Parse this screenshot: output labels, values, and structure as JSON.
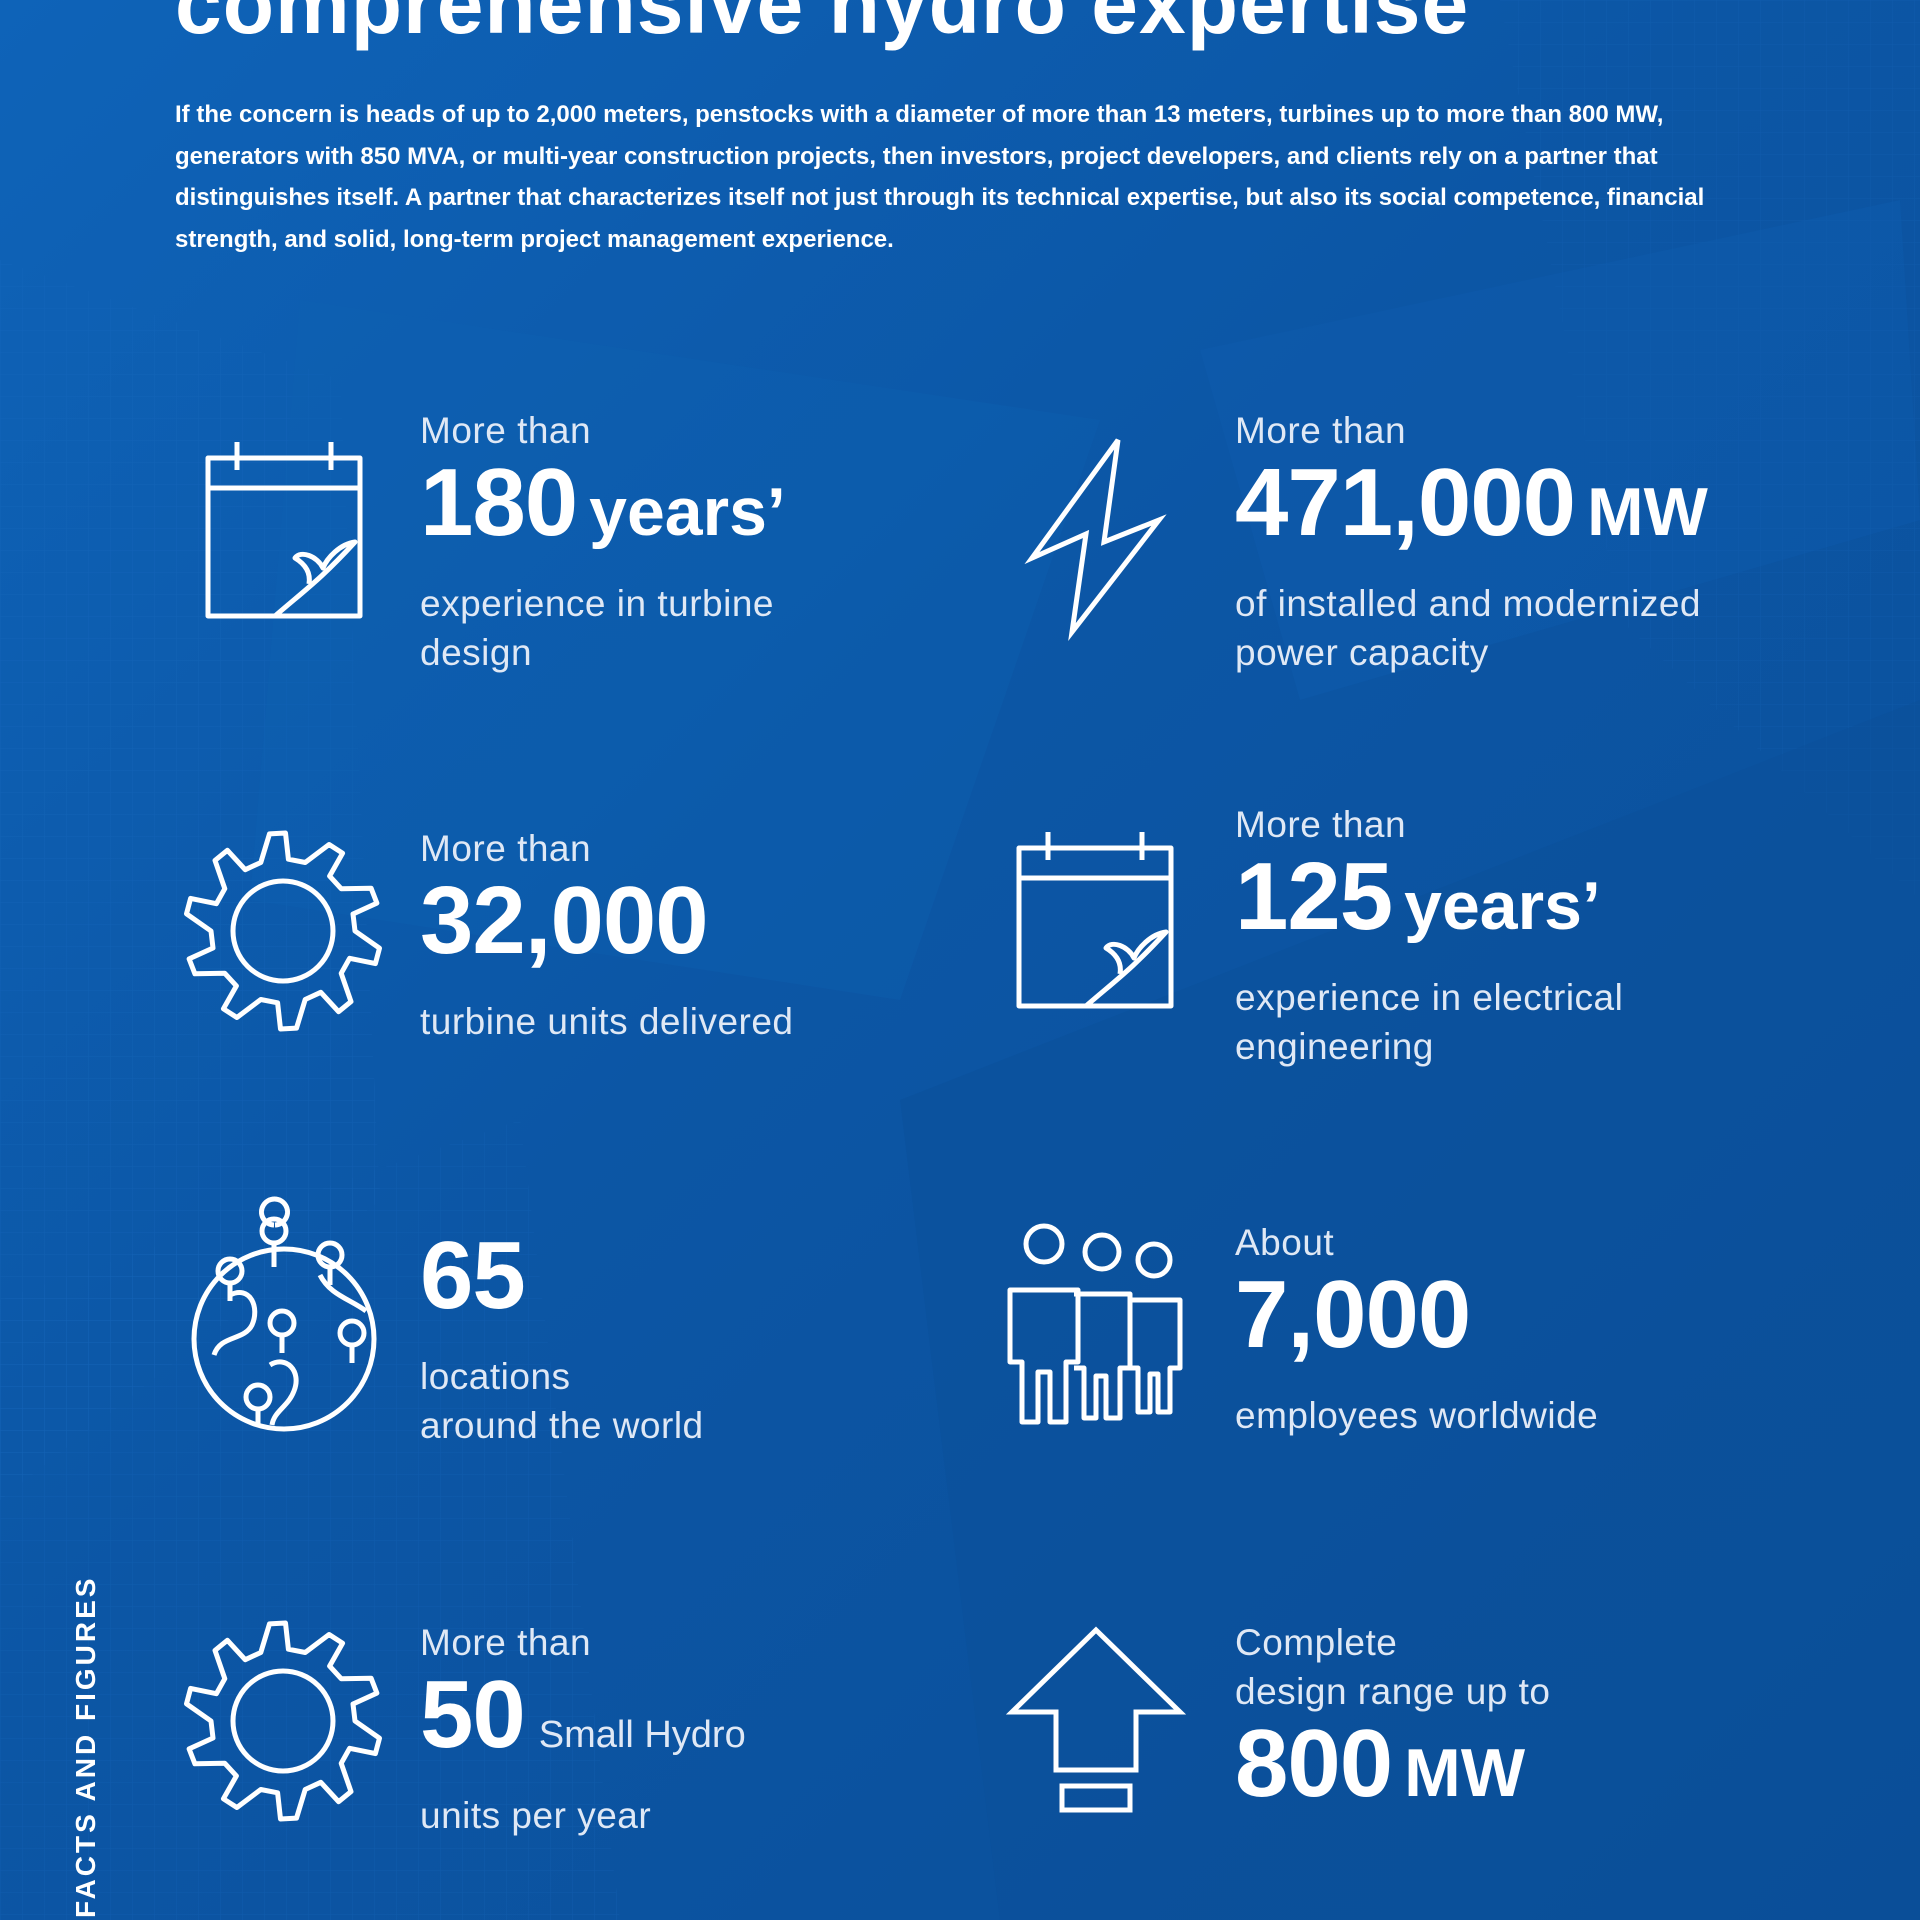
{
  "title": "comprehensive hydro expertise",
  "intro": "If the concern is heads of up to 2,000 meters, penstocks with a diameter of more than 13 meters, turbines up to more than 800 MW, generators with 850 MVA, or multi-year construction projects, then investors, project developers, and clients rely on a partner that distinguishes itself. A partner that characterizes itself not just through its technical expertise, but also its social competence, financial strength, and solid, long-term project management experience.",
  "side_label": "FACTS AND FIGURES",
  "colors": {
    "background": "#0d5aa8",
    "text": "#ffffff",
    "muted_text": "#dfe8f5"
  },
  "stats": [
    {
      "icon": "calendar-icon",
      "pre": "More than",
      "value": "180",
      "unit": "years’",
      "desc": "experience in turbine\ndesign"
    },
    {
      "icon": "lightning-icon",
      "pre": "More than",
      "value": "471,000",
      "unit": "MW",
      "desc": "of installed and modernized\npower capacity"
    },
    {
      "icon": "turbine-gear-icon",
      "pre": "More than",
      "value": "32,000",
      "unit": "",
      "desc": "turbine units delivered"
    },
    {
      "icon": "calendar-icon",
      "pre": "More than",
      "value": "125",
      "unit": "years’",
      "desc": "experience in electrical\nengineering"
    },
    {
      "icon": "globe-pins-icon",
      "pre": "",
      "value": "65",
      "unit": "",
      "desc": "locations\naround the world"
    },
    {
      "icon": "people-icon",
      "pre": "About",
      "value": "7,000",
      "unit": "",
      "desc": "employees worldwide"
    },
    {
      "icon": "turbine-gear-icon",
      "pre": "More than",
      "value": "50",
      "unit": "Small Hydro",
      "desc": "units per year"
    },
    {
      "icon": "up-arrow-icon",
      "pre": "Complete\ndesign range up to",
      "value": "800",
      "unit": "MW",
      "desc": ""
    }
  ]
}
